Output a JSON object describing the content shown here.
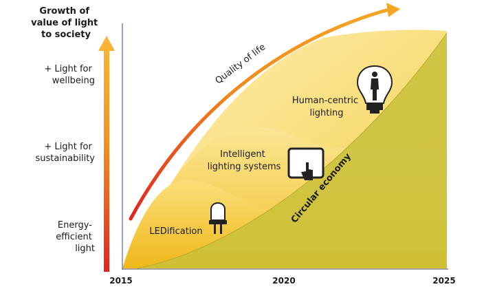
{
  "header": {
    "title_lines": [
      "Growth of",
      "value of light",
      "to society"
    ]
  },
  "levels": [
    {
      "lines": [
        "+ Light for",
        "wellbeing"
      ]
    },
    {
      "lines": [
        "+ Light for",
        "sustainability"
      ]
    },
    {
      "lines": [
        "Energy-",
        "efficient",
        "light"
      ]
    }
  ],
  "years": [
    "2015",
    "2020",
    "2025"
  ],
  "trends": {
    "quality": "Quality of life",
    "circular": "Circular economy"
  },
  "stages": [
    {
      "lines": [
        "Human-centric",
        "lighting"
      ]
    },
    {
      "lines": [
        "Intelligent",
        "lighting systems"
      ]
    },
    {
      "lines": [
        "LEDification"
      ]
    }
  ]
}
